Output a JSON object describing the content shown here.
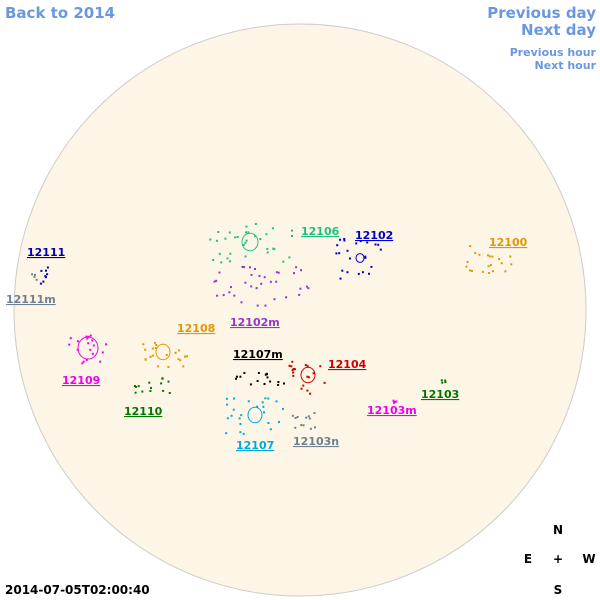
{
  "nav": {
    "back": "Back to 2014",
    "prev_day": "Previous day",
    "next_day": "Next day",
    "prev_hour": "Previous hour",
    "next_hour": "Next hour"
  },
  "regions": [
    {
      "label": "12111",
      "color": "#0000aa"
    },
    {
      "label": "12111m",
      "color": "#708090"
    },
    {
      "label": "12106",
      "color": "#20c080"
    },
    {
      "label": "12102",
      "color": "#0000cc"
    },
    {
      "label": "12100",
      "color": "#e69500"
    },
    {
      "label": "12102m",
      "color": "#9933cc"
    },
    {
      "label": "12108",
      "color": "#e69500"
    },
    {
      "label": "12109",
      "color": "#ee00ee"
    },
    {
      "label": "12107m",
      "color": "#000000"
    },
    {
      "label": "12104",
      "color": "#cc0000"
    },
    {
      "label": "12110",
      "color": "#007700"
    },
    {
      "label": "12103",
      "color": "#007700"
    },
    {
      "label": "12103m",
      "color": "#ee00ee"
    },
    {
      "label": "12107",
      "color": "#00aadd"
    },
    {
      "label": "12103n",
      "color": "#708090"
    }
  ],
  "compass": {
    "n": "N",
    "e": "E",
    "center": "+",
    "w": "W",
    "s": "S"
  },
  "timestamp": "2014-07-05T02:00:40"
}
